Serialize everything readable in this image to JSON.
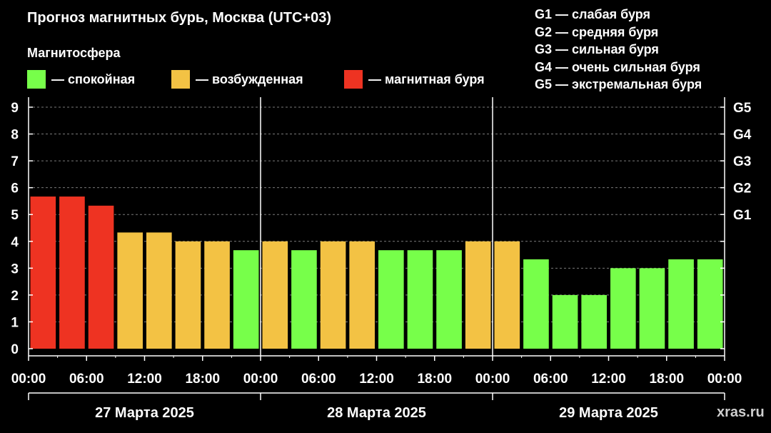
{
  "header": {
    "title": "Прогноз магнитных бурь, Москва (UTC+03)",
    "subtitle": "Магнитосфера"
  },
  "legend": [
    {
      "label": "— спокойная",
      "color": "#77ff4a"
    },
    {
      "label": "— возбужденная",
      "color": "#f3c244"
    },
    {
      "label": "— магнитная буря",
      "color": "#ee3322"
    }
  ],
  "storm_scale": [
    "G1 — слабая буря",
    "G2 — средняя буря",
    "G3 — сильная буря",
    "G4 — очень сильная буря",
    "G5 — экстремальная буря"
  ],
  "watermark": "xras.ru",
  "chart_data": {
    "type": "bar",
    "title": "Прогноз магнитных бурь, Москва (UTC+03)",
    "ylim": [
      0,
      9
    ],
    "yticks": [
      0,
      1,
      2,
      3,
      4,
      5,
      6,
      7,
      8,
      9
    ],
    "right_ticks": [
      {
        "value": 5,
        "label": "G1"
      },
      {
        "value": 6,
        "label": "G2"
      },
      {
        "value": 7,
        "label": "G3"
      },
      {
        "value": 8,
        "label": "G4"
      },
      {
        "value": 9,
        "label": "G5"
      }
    ],
    "grid": true,
    "x_tick_labels": [
      "00:00",
      "06:00",
      "12:00",
      "18:00",
      "00:00",
      "06:00",
      "12:00",
      "18:00",
      "00:00",
      "06:00",
      "12:00",
      "18:00",
      "00:00"
    ],
    "days": [
      "27 Марта 2025",
      "28 Марта 2025",
      "29 Марта 2025"
    ],
    "bars_per_day": 8,
    "hours_per_bar": 3,
    "values": [
      5.67,
      5.67,
      5.33,
      4.33,
      4.33,
      4.0,
      4.0,
      3.67,
      4.0,
      3.67,
      4.0,
      4.0,
      3.67,
      3.67,
      3.67,
      4.0,
      4.0,
      3.33,
      2.0,
      2.0,
      3.0,
      3.0,
      3.33,
      3.33
    ],
    "levels": [
      "storm",
      "storm",
      "storm",
      "active",
      "active",
      "active",
      "active",
      "quiet",
      "active",
      "quiet",
      "active",
      "active",
      "quiet",
      "quiet",
      "quiet",
      "active",
      "active",
      "quiet",
      "quiet",
      "quiet",
      "quiet",
      "quiet",
      "quiet",
      "quiet"
    ],
    "level_colors": {
      "quiet": "#77ff4a",
      "active": "#f3c244",
      "storm": "#ee3322"
    }
  }
}
